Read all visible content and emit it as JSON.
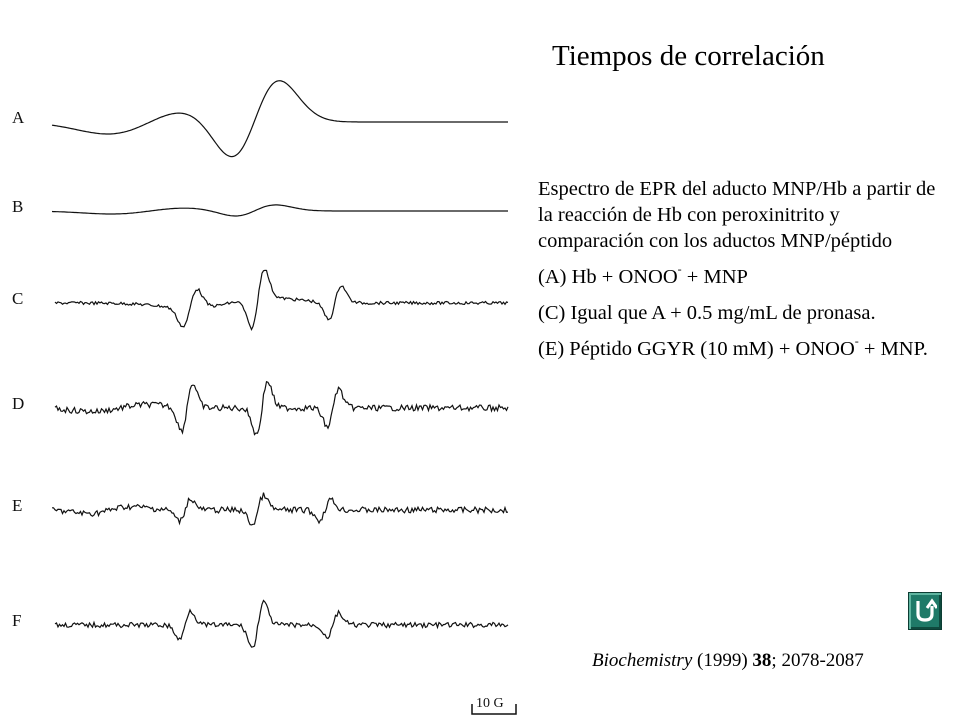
{
  "title": "Tiempos de correlación",
  "description": "Espectro de EPR del aducto MNP/Hb a partir de la reacción de Hb con peroxinitrito y comparación con los aductos MNP/péptido",
  "legend": [
    {
      "pre": "(A) Hb + ONOO",
      "sup": "-",
      "post": " + MNP"
    },
    {
      "pre": "(C) Igual que A + 0.5 mg/mL de pronasa.",
      "sup": "",
      "post": ""
    },
    {
      "pre": "(E) Péptido GGYR (10 mM)  + ONOO",
      "sup": "-",
      "post": " + MNP."
    }
  ],
  "citation": {
    "journal": "Biochemistry",
    "year": " (1999) ",
    "volume": "38",
    "pages": "; 2078-2087"
  },
  "spectra": {
    "trace_labels": [
      "A",
      "B",
      "C",
      "D",
      "E",
      "F"
    ],
    "scale_bar": "10 G"
  },
  "nav": {
    "icon": "return-arrow-icon"
  }
}
